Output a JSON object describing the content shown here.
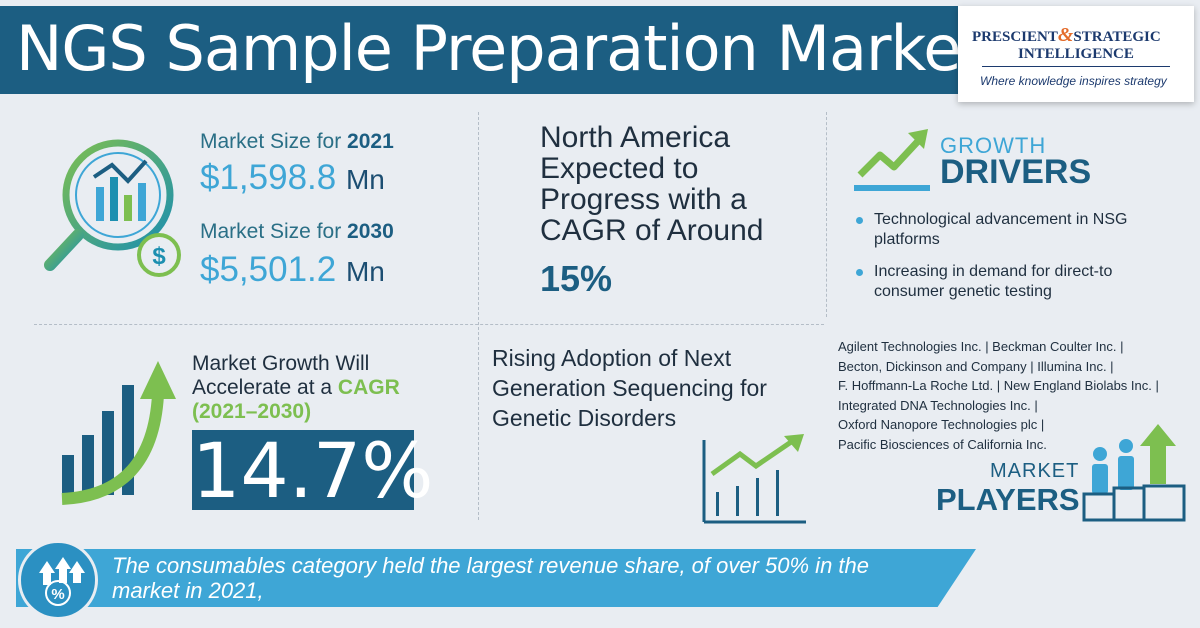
{
  "header": {
    "title": "NGS Sample Preparation Market",
    "logo": {
      "line1a": "PRESCIENT",
      "amp": "&",
      "line1b": "STRATEGIC",
      "line2": "INTELLIGENCE",
      "tagline": "Where knowledge inspires strategy"
    }
  },
  "market_size": [
    {
      "label": "Market Size for ",
      "year": "2021",
      "value": "$1,598.8",
      "unit": "Mn"
    },
    {
      "label": "Market Size for ",
      "year": "2030",
      "value": "$5,501.2",
      "unit": "Mn"
    }
  ],
  "north_america": {
    "text": "North America Expected to Progress with a CAGR of Around",
    "value": "15%"
  },
  "growth_drivers": {
    "heading_small": "GROWTH",
    "heading_big": "DRIVERS",
    "items": [
      "Technological advancement in NSG platforms",
      "Increasing in demand for direct-to consumer genetic testing"
    ]
  },
  "cagr": {
    "line1": "Market Growth Will",
    "line2a": "Accelerate at a ",
    "line2b": "CAGR",
    "line3": "(2021–2030)",
    "value": "14.7%"
  },
  "rising": {
    "text": "Rising Adoption of  Next Generation Sequencing for Genetic Disorders"
  },
  "players": {
    "lines": [
      "Agilent Technologies Inc. | Beckman Coulter Inc. |",
      "Becton, Dickinson and Company | Illumina Inc. |",
      "F. Hoffmann-La Roche Ltd. | New England Biolabs Inc. |",
      "Integrated DNA Technologies Inc. |",
      "Oxford Nanopore Technologies plc |",
      "Pacific Biosciences of California Inc."
    ],
    "heading_small": "MARKET",
    "heading_big": "PLAYERS"
  },
  "banner": {
    "text": "The consumables category held the largest revenue share, of over 50% in the market in 2021,"
  },
  "colors": {
    "navy": "#1c5e82",
    "sky": "#3ea6d6",
    "green": "#7dbf50",
    "bg": "#e9edf2"
  },
  "icons": [
    "magnifier-chart-icon",
    "dollar-coin-icon",
    "trend-arrow-icon",
    "bar-growth-arrow-icon",
    "line-chart-icon",
    "players-podium-icon",
    "percent-arrows-icon"
  ]
}
